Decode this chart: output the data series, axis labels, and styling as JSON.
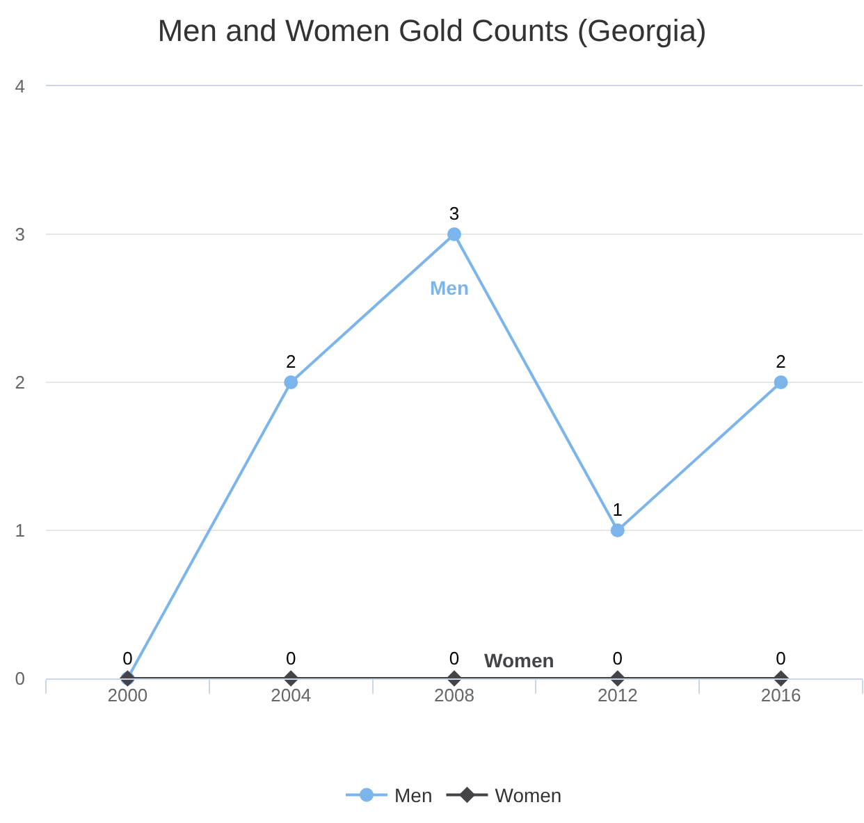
{
  "chart_data": {
    "type": "line",
    "title": "Men and Women Gold Counts (Georgia)",
    "categories": [
      "2000",
      "2004",
      "2008",
      "2012",
      "2016"
    ],
    "series": [
      {
        "name": "Men",
        "color": "#7cb5ec",
        "marker": "circle",
        "values": [
          0,
          2,
          3,
          1,
          2
        ],
        "value_labels": [
          null,
          "2",
          "3",
          "1",
          "2"
        ]
      },
      {
        "name": "Women",
        "color": "#434348",
        "marker": "diamond",
        "values": [
          0,
          0,
          0,
          0,
          0
        ],
        "value_labels": [
          "0",
          "0",
          "0",
          "0",
          "0"
        ]
      }
    ],
    "ylim": [
      0,
      4
    ],
    "yticks": [
      0,
      1,
      2,
      3,
      4
    ],
    "grid": "y",
    "legend": "bottom",
    "line_style": "solid"
  }
}
